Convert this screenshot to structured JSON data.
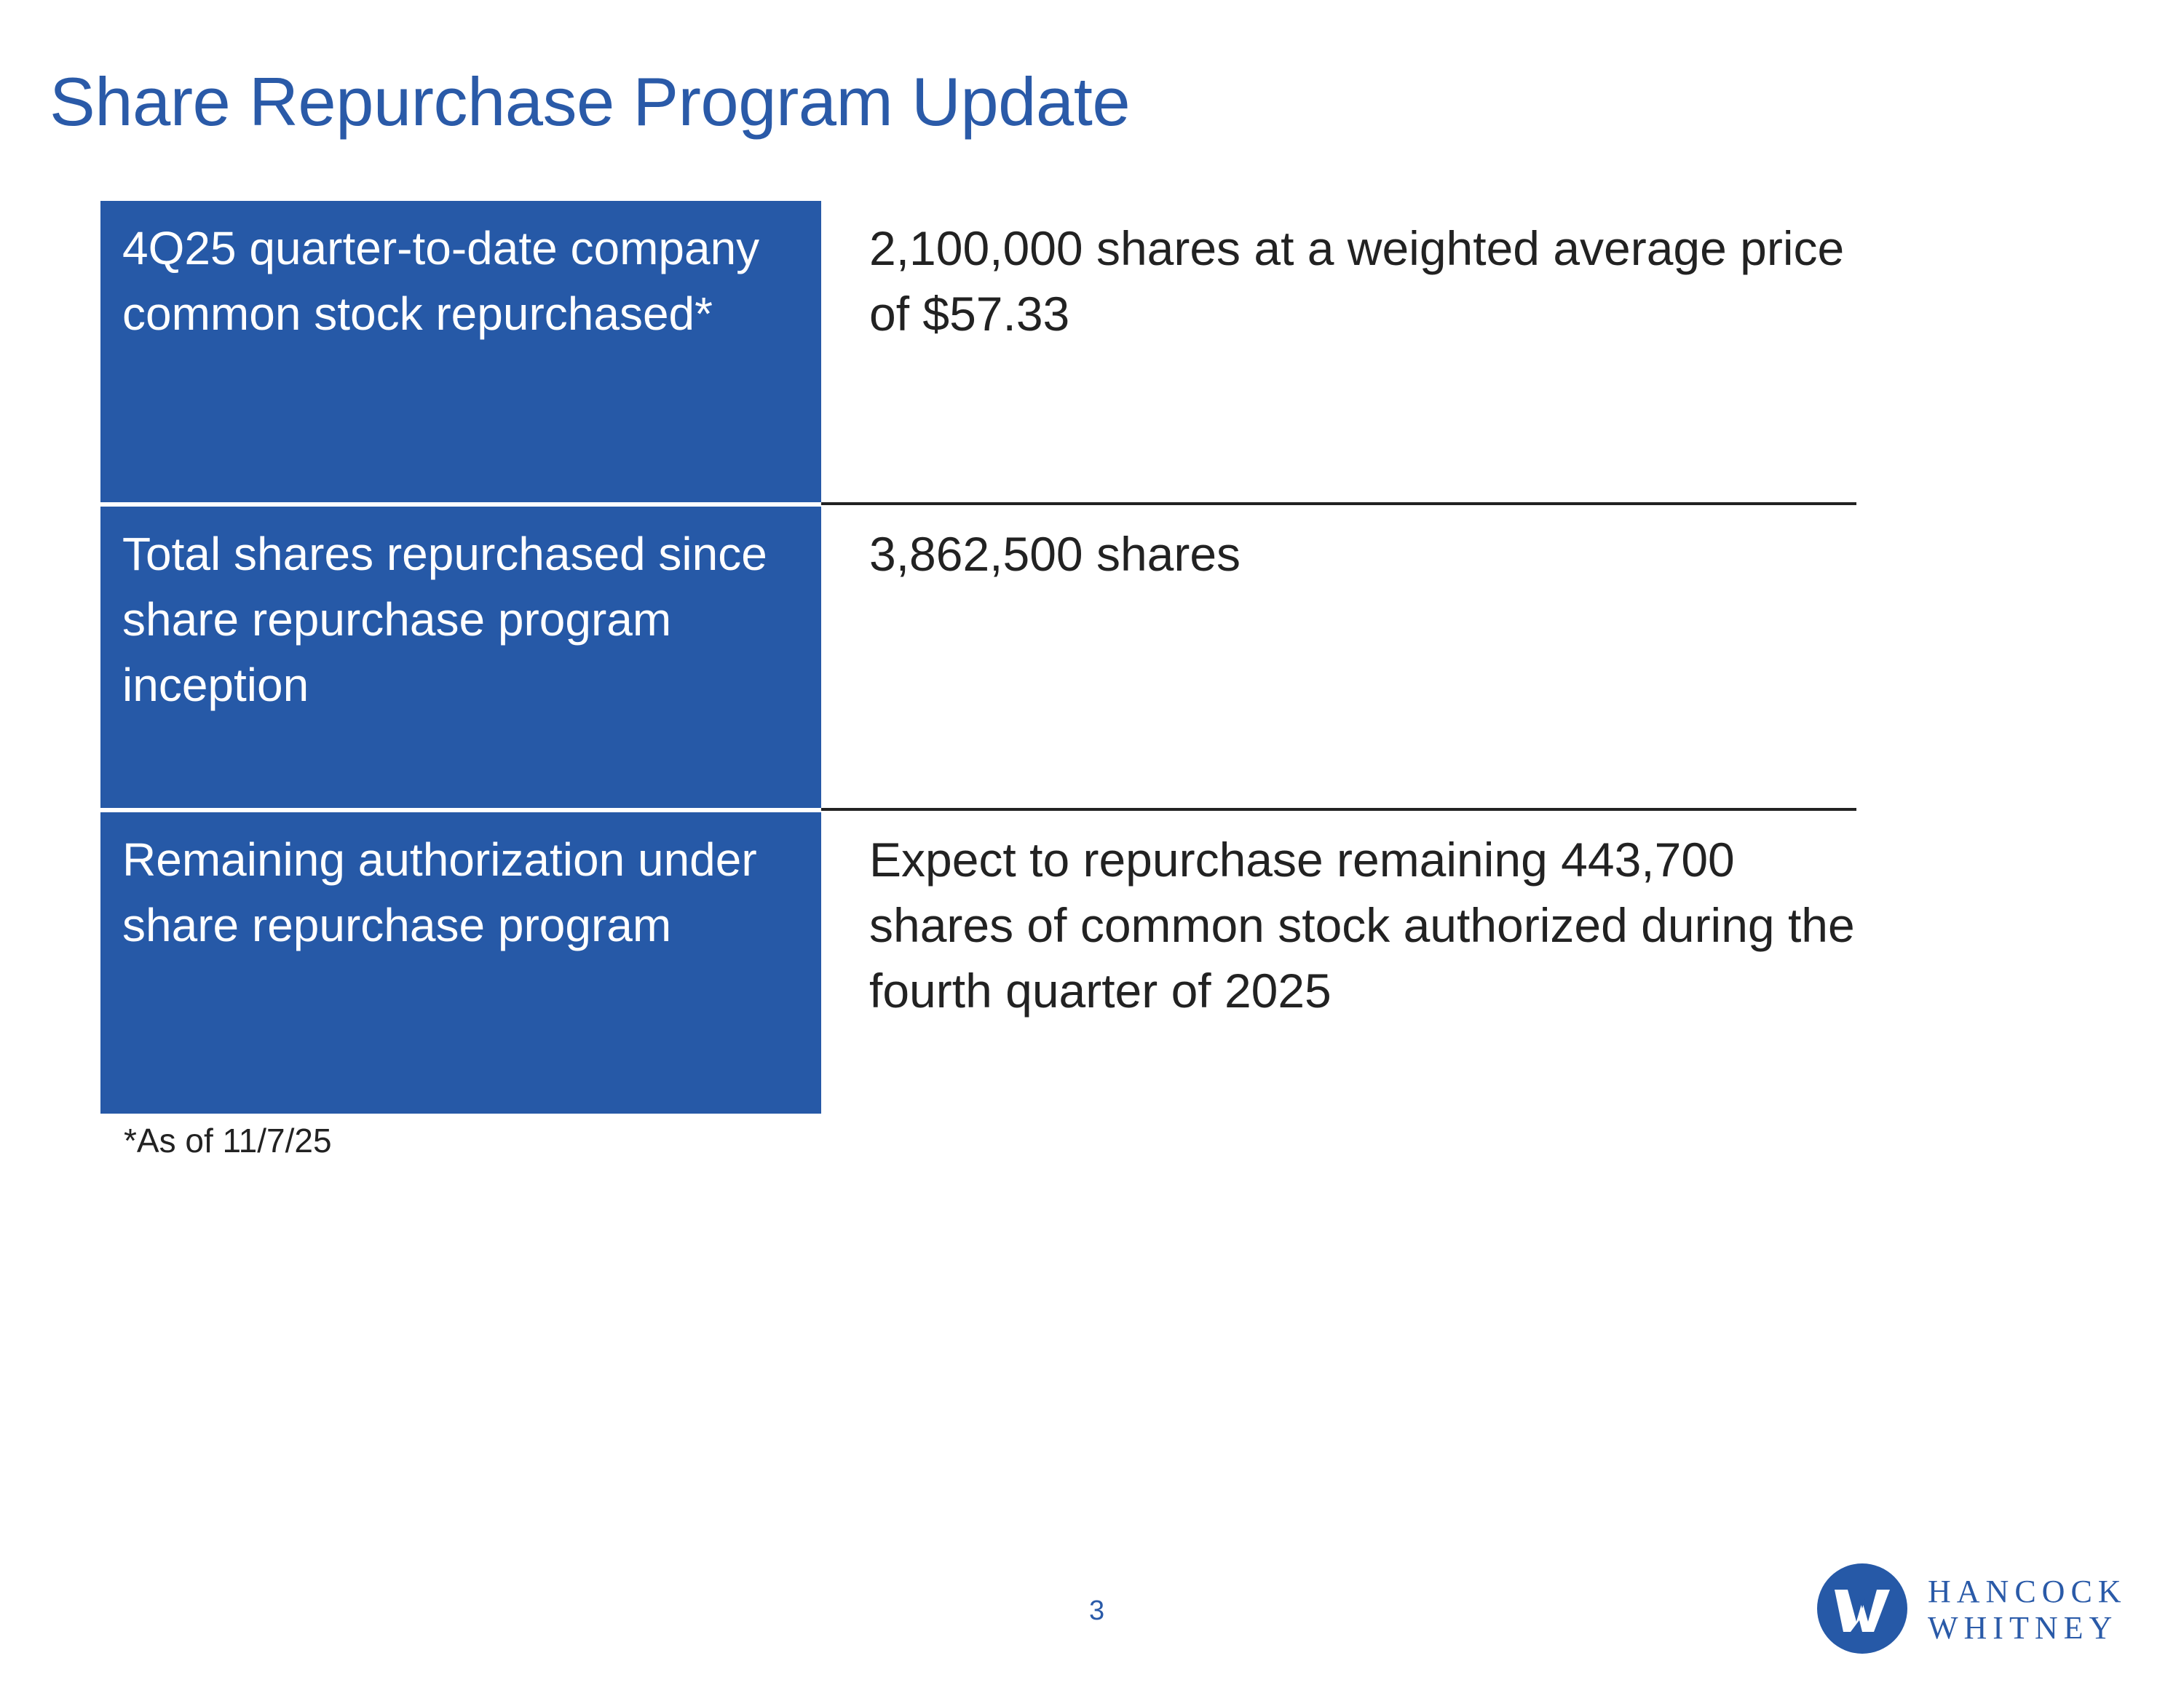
{
  "page": {
    "title": "Share Repurchase Program Update",
    "footnote": "*As of 11/7/25",
    "page_number": "3"
  },
  "table": {
    "rows": [
      {
        "label": "4Q25 quarter-to-date company common stock repurchased*",
        "value": "2,100,000 shares at a weighted average price of $57.33"
      },
      {
        "label": "Total shares repurchased since share repurchase program inception",
        "value": "3,862,500 shares"
      },
      {
        "label": "Remaining authorization under share repurchase program",
        "value": "Expect to repurchase remaining 443,700 shares of common stock authorized during the fourth quarter of 2025"
      }
    ]
  },
  "logo": {
    "line1": "HANCOCK",
    "line2": "WHITNEY",
    "icon": "hancock-whitney-logo-icon"
  },
  "colors": {
    "brand_blue": "#2659a7",
    "title_blue": "#2a5aa8",
    "text": "#222222"
  }
}
